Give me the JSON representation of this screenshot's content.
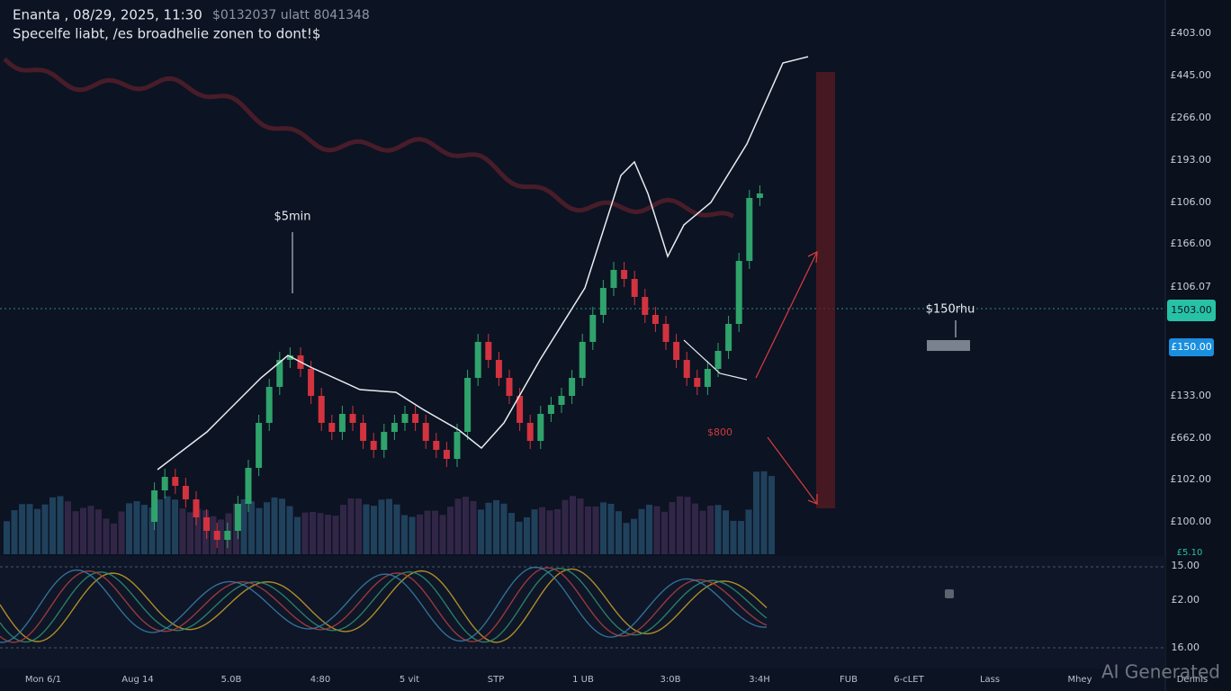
{
  "header": {
    "title": "Enanta , 08/29, 2025, 11:30",
    "ticker_info": "$0132037 ulatt 8041348",
    "subtitle": "Specelfe liabt, /es broadhelie zonen to dont!$"
  },
  "annotations": {
    "top_left": "$5min",
    "right": "$150rhu",
    "low": "$800"
  },
  "price_axis": [
    "£403.00",
    "£445.00",
    "£266.00",
    "£193.00",
    "£106.00",
    "£166.00",
    "£106.07",
    "£133.00",
    "£662.00",
    "£102.00",
    "£100.00"
  ],
  "badges": {
    "current": "1503.00",
    "marker": "£150.00",
    "small": "£5.10"
  },
  "oscillator_axis": [
    "15.00",
    "£2.00",
    "16.00"
  ],
  "time_axis": [
    "Mon 6/1",
    "Aug 14",
    "5.0B",
    "4:80",
    "5 vit",
    "STP",
    "1 UB",
    "3:0B",
    "3:4H",
    "FUB",
    "6-cLET",
    "Lass",
    "Mhey",
    "Dennis"
  ],
  "watermark": "AI Generated"
}
